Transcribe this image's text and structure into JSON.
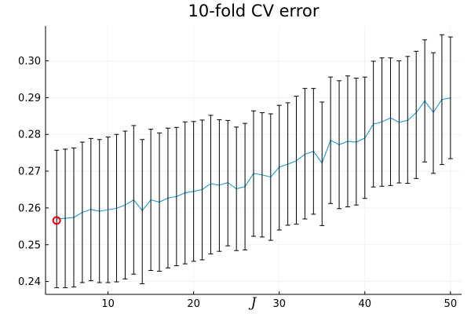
{
  "chart_data": {
    "type": "line",
    "title": "10-fold CV error",
    "xlabel": "J",
    "ylabel": "",
    "xlim": [
      2.7,
      51.3
    ],
    "ylim": [
      0.2365,
      0.3095
    ],
    "xticks": [
      10,
      20,
      30,
      40,
      50
    ],
    "yticks": [
      0.24,
      0.25,
      0.26,
      0.27,
      0.28,
      0.29,
      0.3
    ],
    "xtick_labels": [
      "10",
      "20",
      "30",
      "40",
      "50"
    ],
    "ytick_labels": [
      "0.24",
      "0.25",
      "0.26",
      "0.27",
      "0.28",
      "0.29",
      "0.30"
    ],
    "grid": true,
    "legend": "none",
    "series": [
      {
        "type": "line-errorbar",
        "color": "#1f97d4",
        "errorbar_color": "#000000",
        "x": [
          4,
          5,
          6,
          7,
          8,
          9,
          10,
          11,
          12,
          13,
          14,
          15,
          16,
          17,
          18,
          19,
          20,
          21,
          22,
          23,
          24,
          25,
          26,
          27,
          28,
          29,
          30,
          31,
          32,
          33,
          34,
          35,
          36,
          37,
          38,
          39,
          40,
          41,
          42,
          43,
          44,
          45,
          46,
          47,
          48,
          49,
          50
        ],
        "y": [
          0.257,
          0.2572,
          0.2574,
          0.2588,
          0.2596,
          0.2591,
          0.2595,
          0.2599,
          0.2608,
          0.2622,
          0.2593,
          0.2622,
          0.2616,
          0.2627,
          0.2631,
          0.2641,
          0.2645,
          0.265,
          0.2666,
          0.2662,
          0.2669,
          0.2652,
          0.2658,
          0.2694,
          0.269,
          0.2684,
          0.2711,
          0.2719,
          0.2728,
          0.2746,
          0.2754,
          0.2722,
          0.2784,
          0.2772,
          0.2781,
          0.2779,
          0.279,
          0.2828,
          0.2834,
          0.2845,
          0.2833,
          0.2838,
          0.2859,
          0.2891,
          0.286,
          0.2895,
          0.2899
        ],
        "lower": [
          0.2383,
          0.2383,
          0.2385,
          0.2397,
          0.2402,
          0.2397,
          0.2397,
          0.2399,
          0.2407,
          0.242,
          0.2394,
          0.243,
          0.2428,
          0.2437,
          0.2443,
          0.2448,
          0.2455,
          0.2459,
          0.2475,
          0.2482,
          0.2497,
          0.2484,
          0.2486,
          0.2523,
          0.2521,
          0.2512,
          0.254,
          0.2553,
          0.2556,
          0.257,
          0.2583,
          0.2552,
          0.2612,
          0.2598,
          0.2603,
          0.2608,
          0.2626,
          0.2657,
          0.2659,
          0.2661,
          0.2668,
          0.2667,
          0.268,
          0.2725,
          0.2694,
          0.2718,
          0.2734
        ],
        "upper": [
          0.2757,
          0.276,
          0.2763,
          0.2779,
          0.2789,
          0.2786,
          0.2793,
          0.28,
          0.2809,
          0.2824,
          0.2786,
          0.2814,
          0.2804,
          0.2817,
          0.2819,
          0.2834,
          0.2835,
          0.2839,
          0.2852,
          0.284,
          0.2838,
          0.282,
          0.283,
          0.2864,
          0.2859,
          0.2856,
          0.2879,
          0.2886,
          0.2904,
          0.2925,
          0.2925,
          0.2888,
          0.2956,
          0.2946,
          0.2959,
          0.2953,
          0.2956,
          0.2999,
          0.3008,
          0.3008,
          0.3,
          0.3012,
          0.3026,
          0.3057,
          0.3022,
          0.3071,
          0.3065
        ]
      }
    ],
    "marker": {
      "x": 4,
      "y": 0.2566,
      "shape": "circle-open",
      "color": "#e8000b"
    }
  }
}
